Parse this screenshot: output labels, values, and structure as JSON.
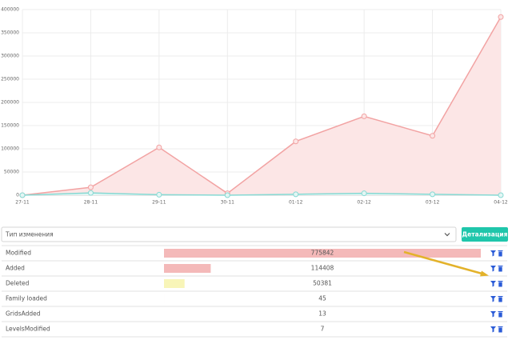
{
  "chart_data": {
    "type": "area",
    "categories": [
      "27-11",
      "28-11",
      "29-11",
      "30-11",
      "01-12",
      "02-12",
      "03-12",
      "04-12"
    ],
    "series": [
      {
        "color": "#f2a3a3",
        "fill": "#fce6e6",
        "values": [
          0,
          17000,
          103000,
          4000,
          116000,
          170000,
          128000,
          384000
        ]
      },
      {
        "color": "#86d9d3",
        "fill": "#e3f6f4",
        "values": [
          0,
          5000,
          1000,
          0,
          2000,
          4000,
          2000,
          0
        ]
      }
    ],
    "ylim": [
      0,
      400000
    ],
    "yticks": [
      0,
      50000,
      100000,
      150000,
      200000,
      250000,
      300000,
      350000,
      400000
    ],
    "grid": true
  },
  "controls": {
    "select_placeholder": "Тип изменения",
    "button": "Детализация"
  },
  "table": {
    "rows": [
      {
        "label": "Modified",
        "value": 775842,
        "color": "#f4b9b9"
      },
      {
        "label": "Added",
        "value": 114408,
        "color": "#f4b9b9"
      },
      {
        "label": "Deleted",
        "value": 50381,
        "color": "#f8f5b8"
      },
      {
        "label": "Family loaded",
        "value": 45,
        "color": "#f4b9b9"
      },
      {
        "label": "GridsAdded",
        "value": 13,
        "color": "#f4b9b9"
      },
      {
        "label": "LevelsModified",
        "value": 7,
        "color": "#f4b9b9"
      }
    ]
  }
}
